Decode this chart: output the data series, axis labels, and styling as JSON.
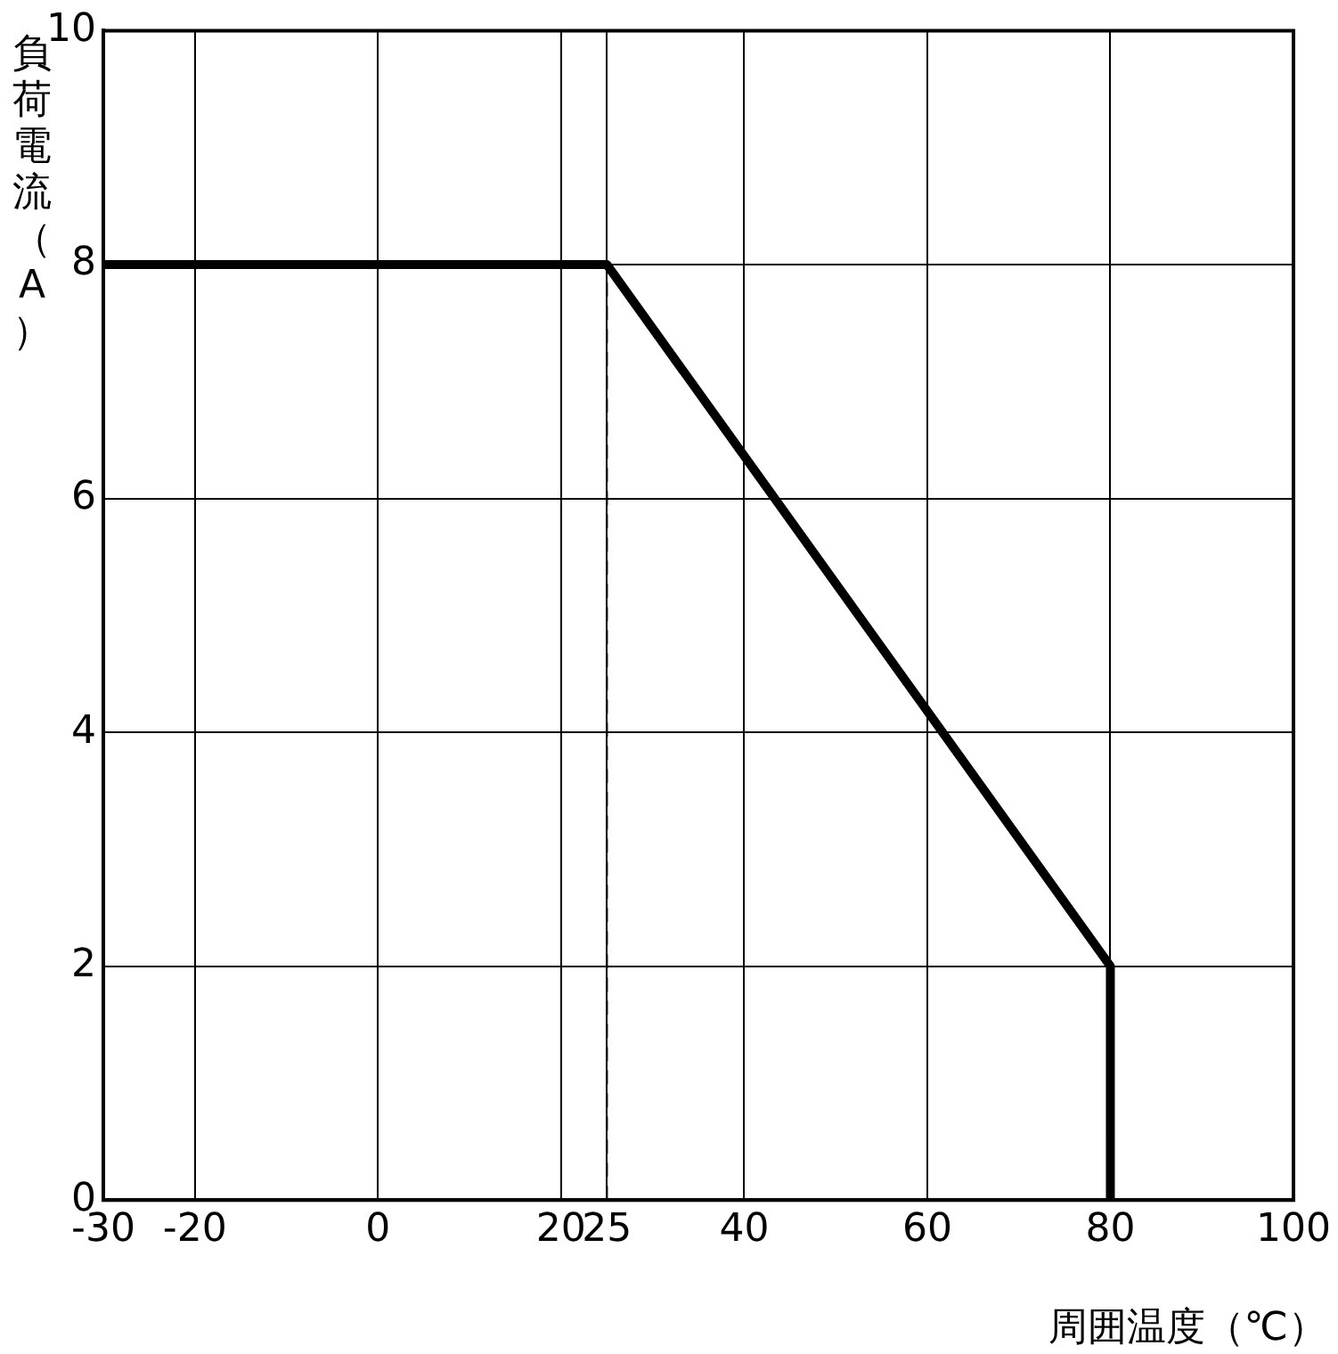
{
  "chart_data": {
    "type": "line",
    "xlabel": "周囲温度（℃）",
    "ylabel": "負荷電流（A）",
    "series": [
      {
        "color": "#000000",
        "x": [
          -30,
          25,
          80,
          80
        ],
        "values": [
          8,
          8,
          2,
          0
        ]
      }
    ],
    "xlim": [
      -30,
      100
    ],
    "xticks": [
      -30,
      -20,
      0,
      20,
      25,
      40,
      60,
      80,
      100
    ],
    "ylim": [
      0,
      10
    ],
    "yticks": [
      0,
      2,
      4,
      6,
      8,
      10
    ],
    "grid": true,
    "legend": false,
    "marker": "none",
    "line_style": "solid",
    "ref_lines": [
      {
        "axis": "x",
        "value": 25,
        "color": "#000000",
        "line_style": "dashed"
      }
    ]
  }
}
